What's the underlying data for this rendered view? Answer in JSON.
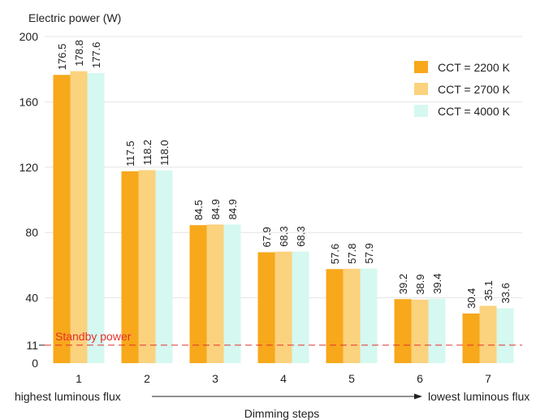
{
  "chart_data": {
    "type": "bar",
    "ylabel": "Electric power (W)",
    "xlabel": "Dimming steps",
    "categories": [
      "1",
      "2",
      "3",
      "4",
      "5",
      "6",
      "7"
    ],
    "ylim": [
      0,
      200
    ],
    "yticks": [
      "200",
      "160",
      "120",
      "80",
      "40",
      "11",
      "0"
    ],
    "ytick_values": [
      200,
      160,
      120,
      80,
      40,
      11,
      0
    ],
    "grid": "horizontal",
    "legend_position": "top-right",
    "series": [
      {
        "name": "CCT = 2200 K",
        "color": "#f7a81b",
        "values": [
          176.5,
          117.5,
          84.5,
          67.9,
          57.6,
          39.2,
          30.4
        ],
        "labels": [
          "176.5",
          "117.5",
          "84.5",
          "67.9",
          "57.6",
          "39.2",
          "30.4"
        ]
      },
      {
        "name": "CCT = 2700 K",
        "color": "#fbd27e",
        "values": [
          178.8,
          118.2,
          84.9,
          68.3,
          57.8,
          38.9,
          35.1
        ],
        "labels": [
          "178.8",
          "118.2",
          "84.9",
          "68.3",
          "57.8",
          "38.9",
          "35.1"
        ]
      },
      {
        "name": "CCT = 4000 K",
        "color": "#d5f8f0",
        "values": [
          177.6,
          118.0,
          84.9,
          68.3,
          57.9,
          39.4,
          33.6
        ],
        "labels": [
          "177.6",
          "118.0",
          "84.9",
          "68.3",
          "57.9",
          "39.4",
          "33.6"
        ]
      }
    ],
    "reference_line": {
      "value": 11,
      "label": "Standby power",
      "color": "#e3302c"
    },
    "annotations": {
      "left": "highest luminous flux",
      "right": "lowest luminous flux"
    }
  }
}
